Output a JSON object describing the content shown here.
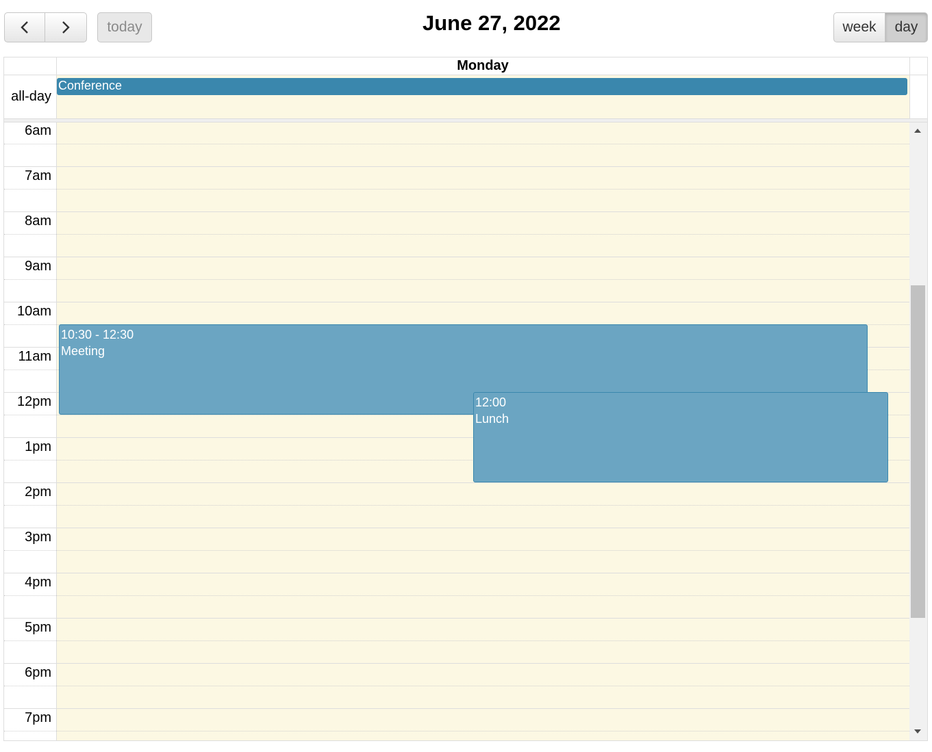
{
  "toolbar": {
    "prev_icon": "chevron-left-icon",
    "next_icon": "chevron-right-icon",
    "today_label": "today",
    "title": "June 27, 2022",
    "week_label": "week",
    "day_label": "day",
    "active_view": "day"
  },
  "calendar": {
    "day_header": "Monday",
    "allday_label": "all-day",
    "allday_events": [
      {
        "title": "Conference",
        "color": "#3a87ad"
      }
    ],
    "time_slots": [
      "6am",
      "7am",
      "8am",
      "9am",
      "10am",
      "11am",
      "12pm",
      "1pm",
      "2pm",
      "3pm",
      "4pm",
      "5pm",
      "6pm",
      "7pm"
    ],
    "events": [
      {
        "time": "10:30 - 12:30",
        "title": "Meeting",
        "color": "#6ba5c2"
      },
      {
        "time": "12:00",
        "title": "Lunch",
        "color": "#6ba5c2"
      }
    ],
    "background_color": "#fcf8e3"
  }
}
